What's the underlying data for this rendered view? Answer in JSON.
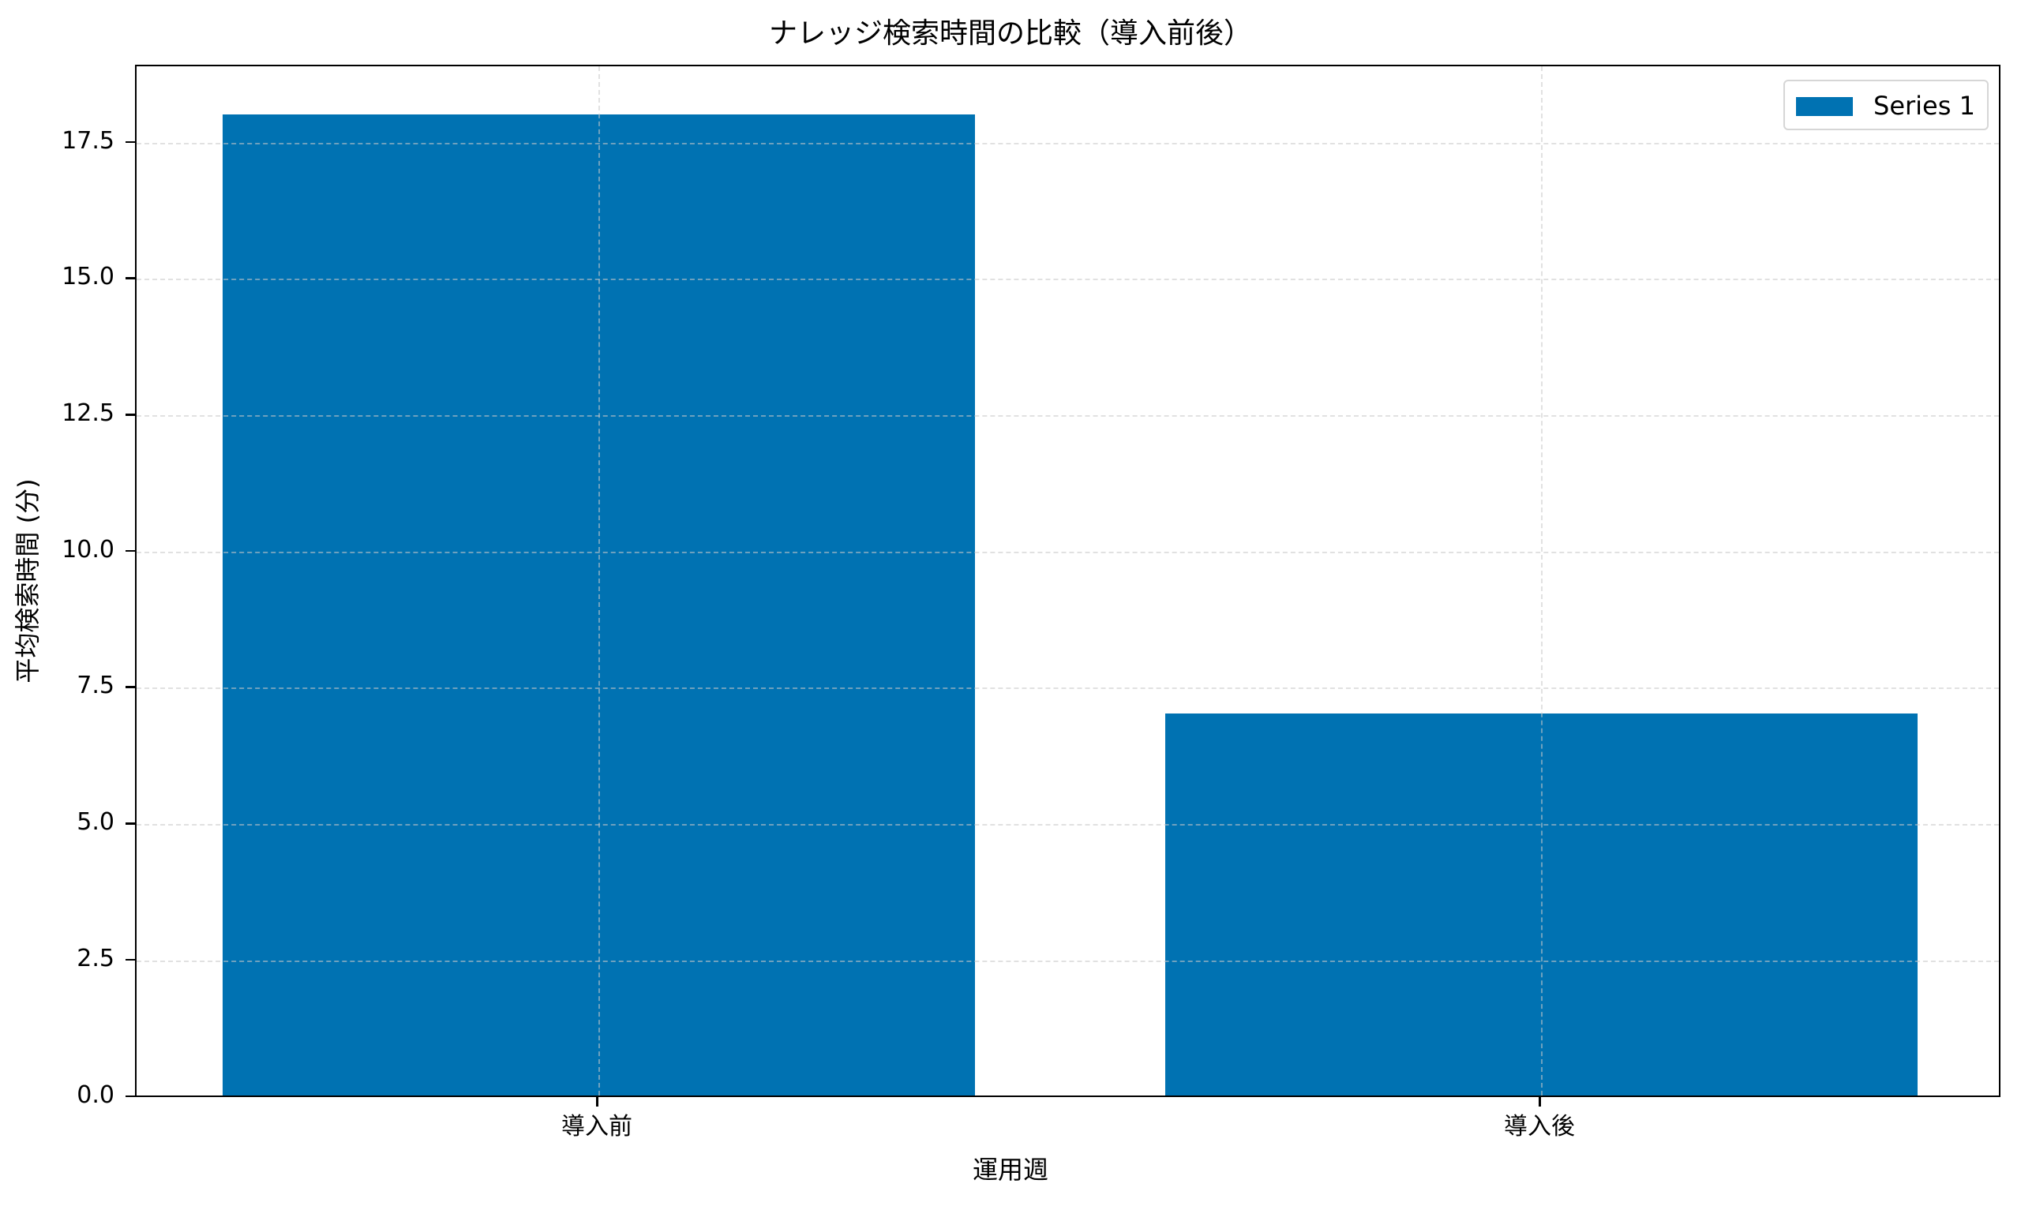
{
  "chart_data": {
    "type": "bar",
    "title": "ナレッジ検索時間の比較（導入前後）",
    "xlabel": "運用週",
    "ylabel": "平均検索時間 (分)",
    "categories": [
      "導入前",
      "導入後"
    ],
    "series": [
      {
        "name": "Series 1",
        "values": [
          18,
          7
        ],
        "color": "#0072b2"
      }
    ],
    "ylim": [
      0,
      18.9
    ],
    "yticks": [
      "0.0",
      "2.5",
      "5.0",
      "7.5",
      "10.0",
      "12.5",
      "15.0",
      "17.5"
    ],
    "ytick_values": [
      0,
      2.5,
      5,
      7.5,
      10,
      12.5,
      15,
      17.5
    ],
    "grid": true,
    "legend_position": "upper right"
  }
}
